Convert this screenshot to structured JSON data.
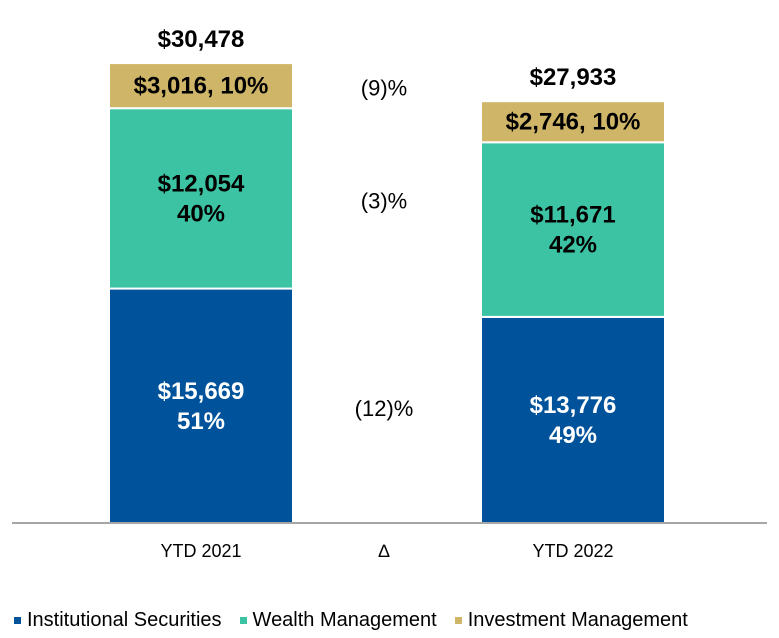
{
  "chart_data": {
    "type": "bar",
    "stacked": true,
    "categories": [
      "YTD 2021",
      "YTD 2022"
    ],
    "change_axis_label": "∆",
    "series": [
      {
        "name": "Institutional Securities",
        "color": "#00539b",
        "label_color": "#ffffff",
        "values": [
          15669,
          13776
        ],
        "labels": [
          [
            "$15,669",
            "51%"
          ],
          [
            "$13,776",
            "49%"
          ]
        ],
        "change": "(12)%"
      },
      {
        "name": "Wealth Management",
        "color": "#3cc3a3",
        "label_color": "#000000",
        "values": [
          12054,
          11671
        ],
        "labels": [
          [
            "$12,054",
            "40%"
          ],
          [
            "$11,671",
            "42%"
          ]
        ],
        "change": "(3)%"
      },
      {
        "name": "Investment Management",
        "color": "#cfb567",
        "label_color": "#000000",
        "values": [
          3016,
          2746
        ],
        "labels": [
          [
            "$3,016, 10%"
          ],
          [
            "$2,746, 10%"
          ]
        ],
        "change": "(9)%"
      }
    ],
    "totals": [
      30478,
      27933
    ],
    "total_labels": [
      "$30,478",
      "$27,933"
    ],
    "ylim": [
      0,
      34000
    ],
    "legend_position": "bottom"
  }
}
